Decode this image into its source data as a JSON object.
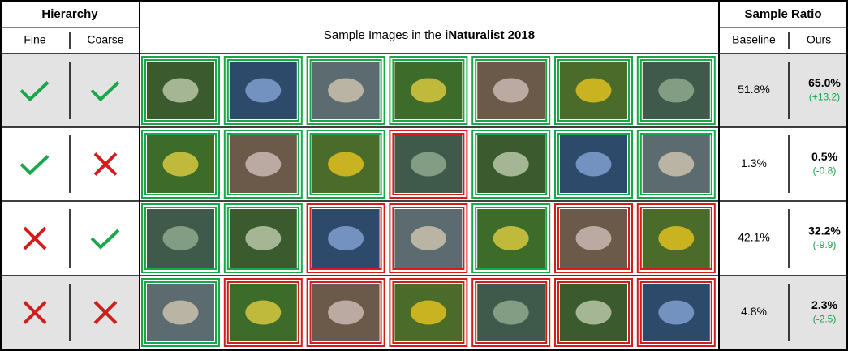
{
  "header": {
    "hierarchy": "Hierarchy",
    "fine": "Fine",
    "coarse": "Coarse",
    "images_title_prefix": "Sample Images in the ",
    "images_title_bold": "iNaturalist 2018",
    "sample_ratio": "Sample Ratio",
    "baseline": "Baseline",
    "ours": "Ours"
  },
  "rows": [
    {
      "fine": true,
      "coarse": true,
      "images_correct": [
        true,
        true,
        true,
        true,
        true,
        true,
        true
      ],
      "baseline": "51.8%",
      "ours": "65.0%",
      "delta": "(+13.2)"
    },
    {
      "fine": true,
      "coarse": false,
      "images_correct": [
        true,
        true,
        true,
        false,
        true,
        true,
        true
      ],
      "baseline": "1.3%",
      "ours": "0.5%",
      "delta": "(-0.8)"
    },
    {
      "fine": false,
      "coarse": true,
      "images_correct": [
        true,
        true,
        false,
        false,
        true,
        false,
        false
      ],
      "baseline": "42.1%",
      "ours": "32.2%",
      "delta": "(-9.9)"
    },
    {
      "fine": false,
      "coarse": false,
      "images_correct": [
        true,
        false,
        false,
        false,
        false,
        false,
        false
      ],
      "baseline": "4.8%",
      "ours": "2.3%",
      "delta": "(-2.5)"
    }
  ]
}
